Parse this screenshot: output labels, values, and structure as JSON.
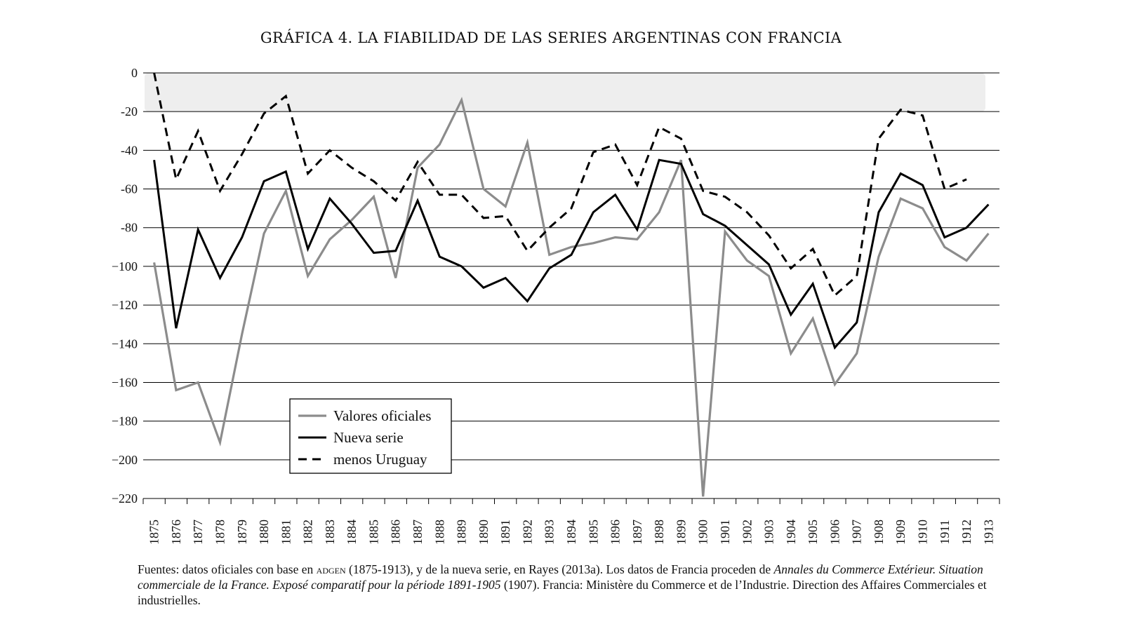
{
  "title": "GRÁFICA 4. LA FIABILIDAD DE LAS SERIES ARGENTINAS CON FRANCIA",
  "colors": {
    "valores": "#8c8c8c",
    "nueva": "#000000",
    "uruguay": "#000000",
    "band": "#eeeeee",
    "grid": "#000000"
  },
  "chart_data": {
    "type": "line",
    "title": "GRÁFICA 4. LA FIABILIDAD DE LAS SERIES ARGENTINAS CON FRANCIA",
    "xlabel": "",
    "ylabel": "",
    "ylim": [
      -220,
      0
    ],
    "band": [
      -20,
      0
    ],
    "yticks": [
      0,
      -20,
      -40,
      -60,
      -80,
      -100,
      -120,
      -140,
      -160,
      -180,
      -200,
      -220
    ],
    "ytick_labels": [
      "0",
      "-20",
      "-40",
      "-60",
      "-80",
      "−100",
      "−120",
      "−140",
      "−160",
      "−180",
      "−200",
      "−220"
    ],
    "categories": [
      "1875",
      "1876",
      "1877",
      "1878",
      "1879",
      "1880",
      "1881",
      "1882",
      "1883",
      "1884",
      "1885",
      "1886",
      "1887",
      "1888",
      "1889",
      "1890",
      "1891",
      "1892",
      "1893",
      "1894",
      "1895",
      "1896",
      "1897",
      "1898",
      "1899",
      "1900",
      "1901",
      "1902",
      "1903",
      "1904",
      "1905",
      "1906",
      "1907",
      "1908",
      "1909",
      "1910",
      "1911",
      "1912",
      "1913"
    ],
    "series": [
      {
        "name": "Valores oficiales",
        "style": "gray",
        "values": [
          -98,
          -164,
          -160,
          -191,
          -135,
          -83,
          -61,
          -105,
          -86,
          -76,
          -64,
          -106,
          -49,
          -37,
          -14,
          -60,
          -69,
          -36,
          -94,
          -90,
          -88,
          -85,
          -86,
          -72,
          -45,
          -219,
          -82,
          -97,
          -105,
          -145,
          -127,
          -161,
          -145,
          -95,
          -65,
          -70,
          -90,
          -97,
          -83
        ]
      },
      {
        "name": "Nueva serie",
        "style": "solid",
        "values": [
          -45,
          -132,
          -81,
          -106,
          -85,
          -56,
          -51,
          -91,
          -65,
          -78,
          -93,
          -92,
          -66,
          -95,
          -100,
          -111,
          -106,
          -118,
          -101,
          -94,
          -72,
          -63,
          -81,
          -45,
          -47,
          -73,
          -79,
          -89,
          -99,
          -125,
          -109,
          -142,
          -129,
          -72,
          -52,
          -58,
          -85,
          -80,
          -68
        ]
      },
      {
        "name": "menos Uruguay",
        "style": "dashed",
        "values": [
          0,
          -55,
          -30,
          -61,
          -42,
          -21,
          -12,
          -52,
          -40,
          -49,
          -56,
          -66,
          -46,
          -63,
          -63,
          -75,
          -74,
          -92,
          -80,
          -70,
          -41,
          -37,
          -58,
          -28,
          -34,
          -61,
          -64,
          -72,
          -84,
          -101,
          -91,
          -115,
          -105,
          -34,
          -19,
          -22,
          -60,
          -55,
          null
        ]
      }
    ],
    "legend": {
      "position": "lower-left",
      "entries": [
        "Valores oficiales",
        "Nueva serie",
        "menos Uruguay"
      ]
    }
  },
  "caption": {
    "p1": "Fuentes: datos oficiales con base en ",
    "p2": "adgen",
    "p3": " (1875-1913), y de la nueva serie, en Rayes (2013a). Los datos de Francia proceden de ",
    "p4": "Annales du Commerce Extérieur. Situation commerciale de la France. Exposé comparatif pour la période 1891-1905",
    "p5": " (1907). Francia: Ministère du Commerce et de l’Industrie. Direction des Affaires Commerciales et industrielles."
  }
}
